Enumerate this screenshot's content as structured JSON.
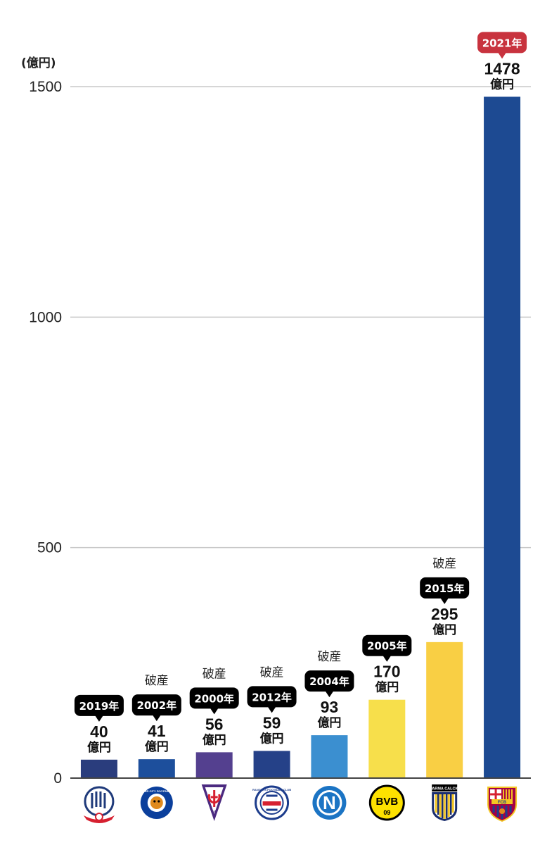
{
  "chart_data": {
    "type": "bar",
    "unit_label": "(億円)",
    "ylim": [
      0,
      1500
    ],
    "yticks": [
      0,
      500,
      1000,
      1500
    ],
    "grid": true,
    "value_unit": "億円",
    "bars": [
      {
        "value": 40,
        "value_label": "40",
        "year": "2019年",
        "note": "",
        "bar_color": "#2a3d7d",
        "tag_color": "#000000",
        "logo": "bolton-wanderers-crest"
      },
      {
        "value": 41,
        "value_label": "41",
        "year": "2002年",
        "note": "破産",
        "bar_color": "#1d4f9c",
        "tag_color": "#000000",
        "logo": "leicester-city-crest"
      },
      {
        "value": 56,
        "value_label": "56",
        "year": "2000年",
        "note": "破産",
        "bar_color": "#54408f",
        "tag_color": "#000000",
        "logo": "fiorentina-crest"
      },
      {
        "value": 59,
        "value_label": "59",
        "year": "2012年",
        "note": "破産",
        "bar_color": "#254188",
        "tag_color": "#000000",
        "logo": "rangers-crest"
      },
      {
        "value": 93,
        "value_label": "93",
        "year": "2004年",
        "note": "破産",
        "bar_color": "#3b8fd0",
        "tag_color": "#000000",
        "logo": "napoli-crest"
      },
      {
        "value": 170,
        "value_label": "170",
        "year": "2005年",
        "note": "",
        "bar_color": "#f7df4b",
        "tag_color": "#000000",
        "logo": "dortmund-crest"
      },
      {
        "value": 295,
        "value_label": "295",
        "year": "2015年",
        "note": "破産",
        "bar_color": "#f9cf44",
        "tag_color": "#000000",
        "logo": "parma-calcio-crest"
      },
      {
        "value": 1478,
        "value_label": "1478",
        "year": "2021年",
        "note": "",
        "bar_color": "#1d4a92",
        "tag_color": "#c8333e",
        "logo": "barcelona-crest"
      }
    ],
    "logo_texts": {
      "leicester": "LEICESTER CITY FOOTBALL CLUB",
      "rangers": "RANGERS FOOTBALL CLUB",
      "dortmund": "BVB",
      "dortmund_year": "09",
      "parma": "PARMA CALCIO",
      "barcelona": "FCB",
      "fiorentina": "AC",
      "napoli": "N"
    }
  }
}
